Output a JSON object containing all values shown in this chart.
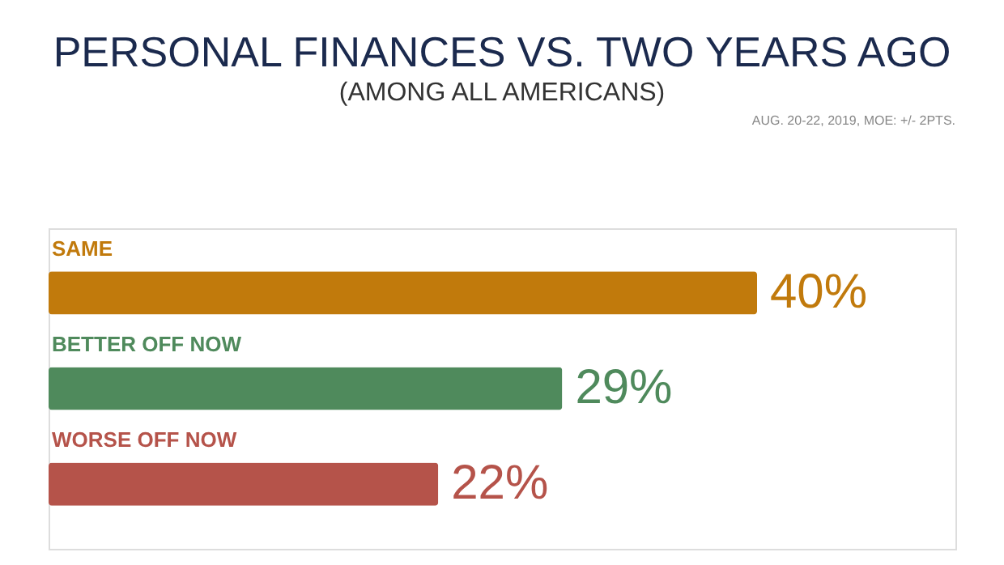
{
  "chart_data": {
    "type": "bar",
    "orientation": "horizontal",
    "title": "PERSONAL FINANCES VS. TWO YEARS AGO",
    "subtitle": "(AMONG ALL AMERICANS)",
    "categories": [
      "SAME",
      "BETTER OFF NOW",
      "WORSE OFF NOW"
    ],
    "values": [
      40,
      29,
      22
    ],
    "colors": [
      "#c17a0c",
      "#4f8a5c",
      "#b5534a"
    ],
    "value_labels": [
      "40%",
      "29%",
      "22%"
    ],
    "annotations": [
      "AUG. 20-22, 2019, MOE: +/- 2PTS."
    ]
  }
}
